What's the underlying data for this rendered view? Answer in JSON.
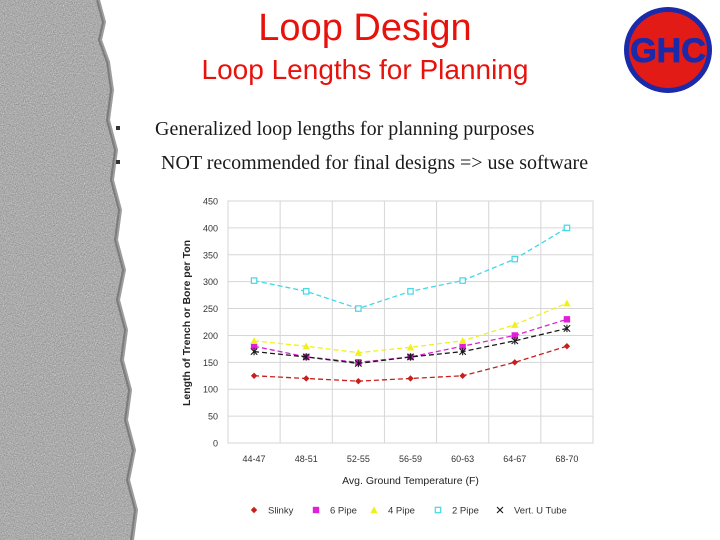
{
  "slide": {
    "title": "Loop Design",
    "subtitle": "Loop Lengths for Planning",
    "logo_text": "GHC",
    "bullets": [
      "Generalized loop lengths for planning purposes",
      "NOT recommended for final designs => use software"
    ]
  },
  "colors": {
    "title_red": "#e8120c",
    "logo_blue": "#1a2aa8",
    "logo_red": "#e31b17"
  },
  "chart_data": {
    "type": "line",
    "title": "",
    "xlabel": "Avg. Ground Temperature (F)",
    "ylabel": "Length of Trench or Bore per Ton",
    "categories": [
      "44-47",
      "48-51",
      "52-55",
      "56-59",
      "60-63",
      "64-67",
      "68-70"
    ],
    "ylim": [
      0,
      450
    ],
    "yticks": [
      0,
      50,
      100,
      150,
      200,
      250,
      300,
      350,
      400,
      450
    ],
    "grid": true,
    "legend_position": "bottom",
    "series": [
      {
        "name": "Slinky",
        "color": "#c81e1e",
        "marker": "diamond",
        "values": [
          125,
          120,
          115,
          120,
          125,
          150,
          180
        ]
      },
      {
        "name": "6 Pipe",
        "color": "#e020d8",
        "marker": "square",
        "values": [
          180,
          160,
          150,
          160,
          180,
          200,
          230
        ]
      },
      {
        "name": "4 Pipe",
        "color": "#f0f020",
        "marker": "triangle",
        "values": [
          190,
          180,
          168,
          178,
          190,
          220,
          260
        ]
      },
      {
        "name": "2 Pipe",
        "color": "#40d8e8",
        "marker": "open-square",
        "values": [
          302,
          282,
          250,
          282,
          302,
          342,
          400
        ]
      },
      {
        "name": "Vert. U Tube",
        "color": "#1a1a1a",
        "marker": "star",
        "values": [
          170,
          160,
          148,
          160,
          170,
          190,
          213
        ]
      }
    ]
  }
}
